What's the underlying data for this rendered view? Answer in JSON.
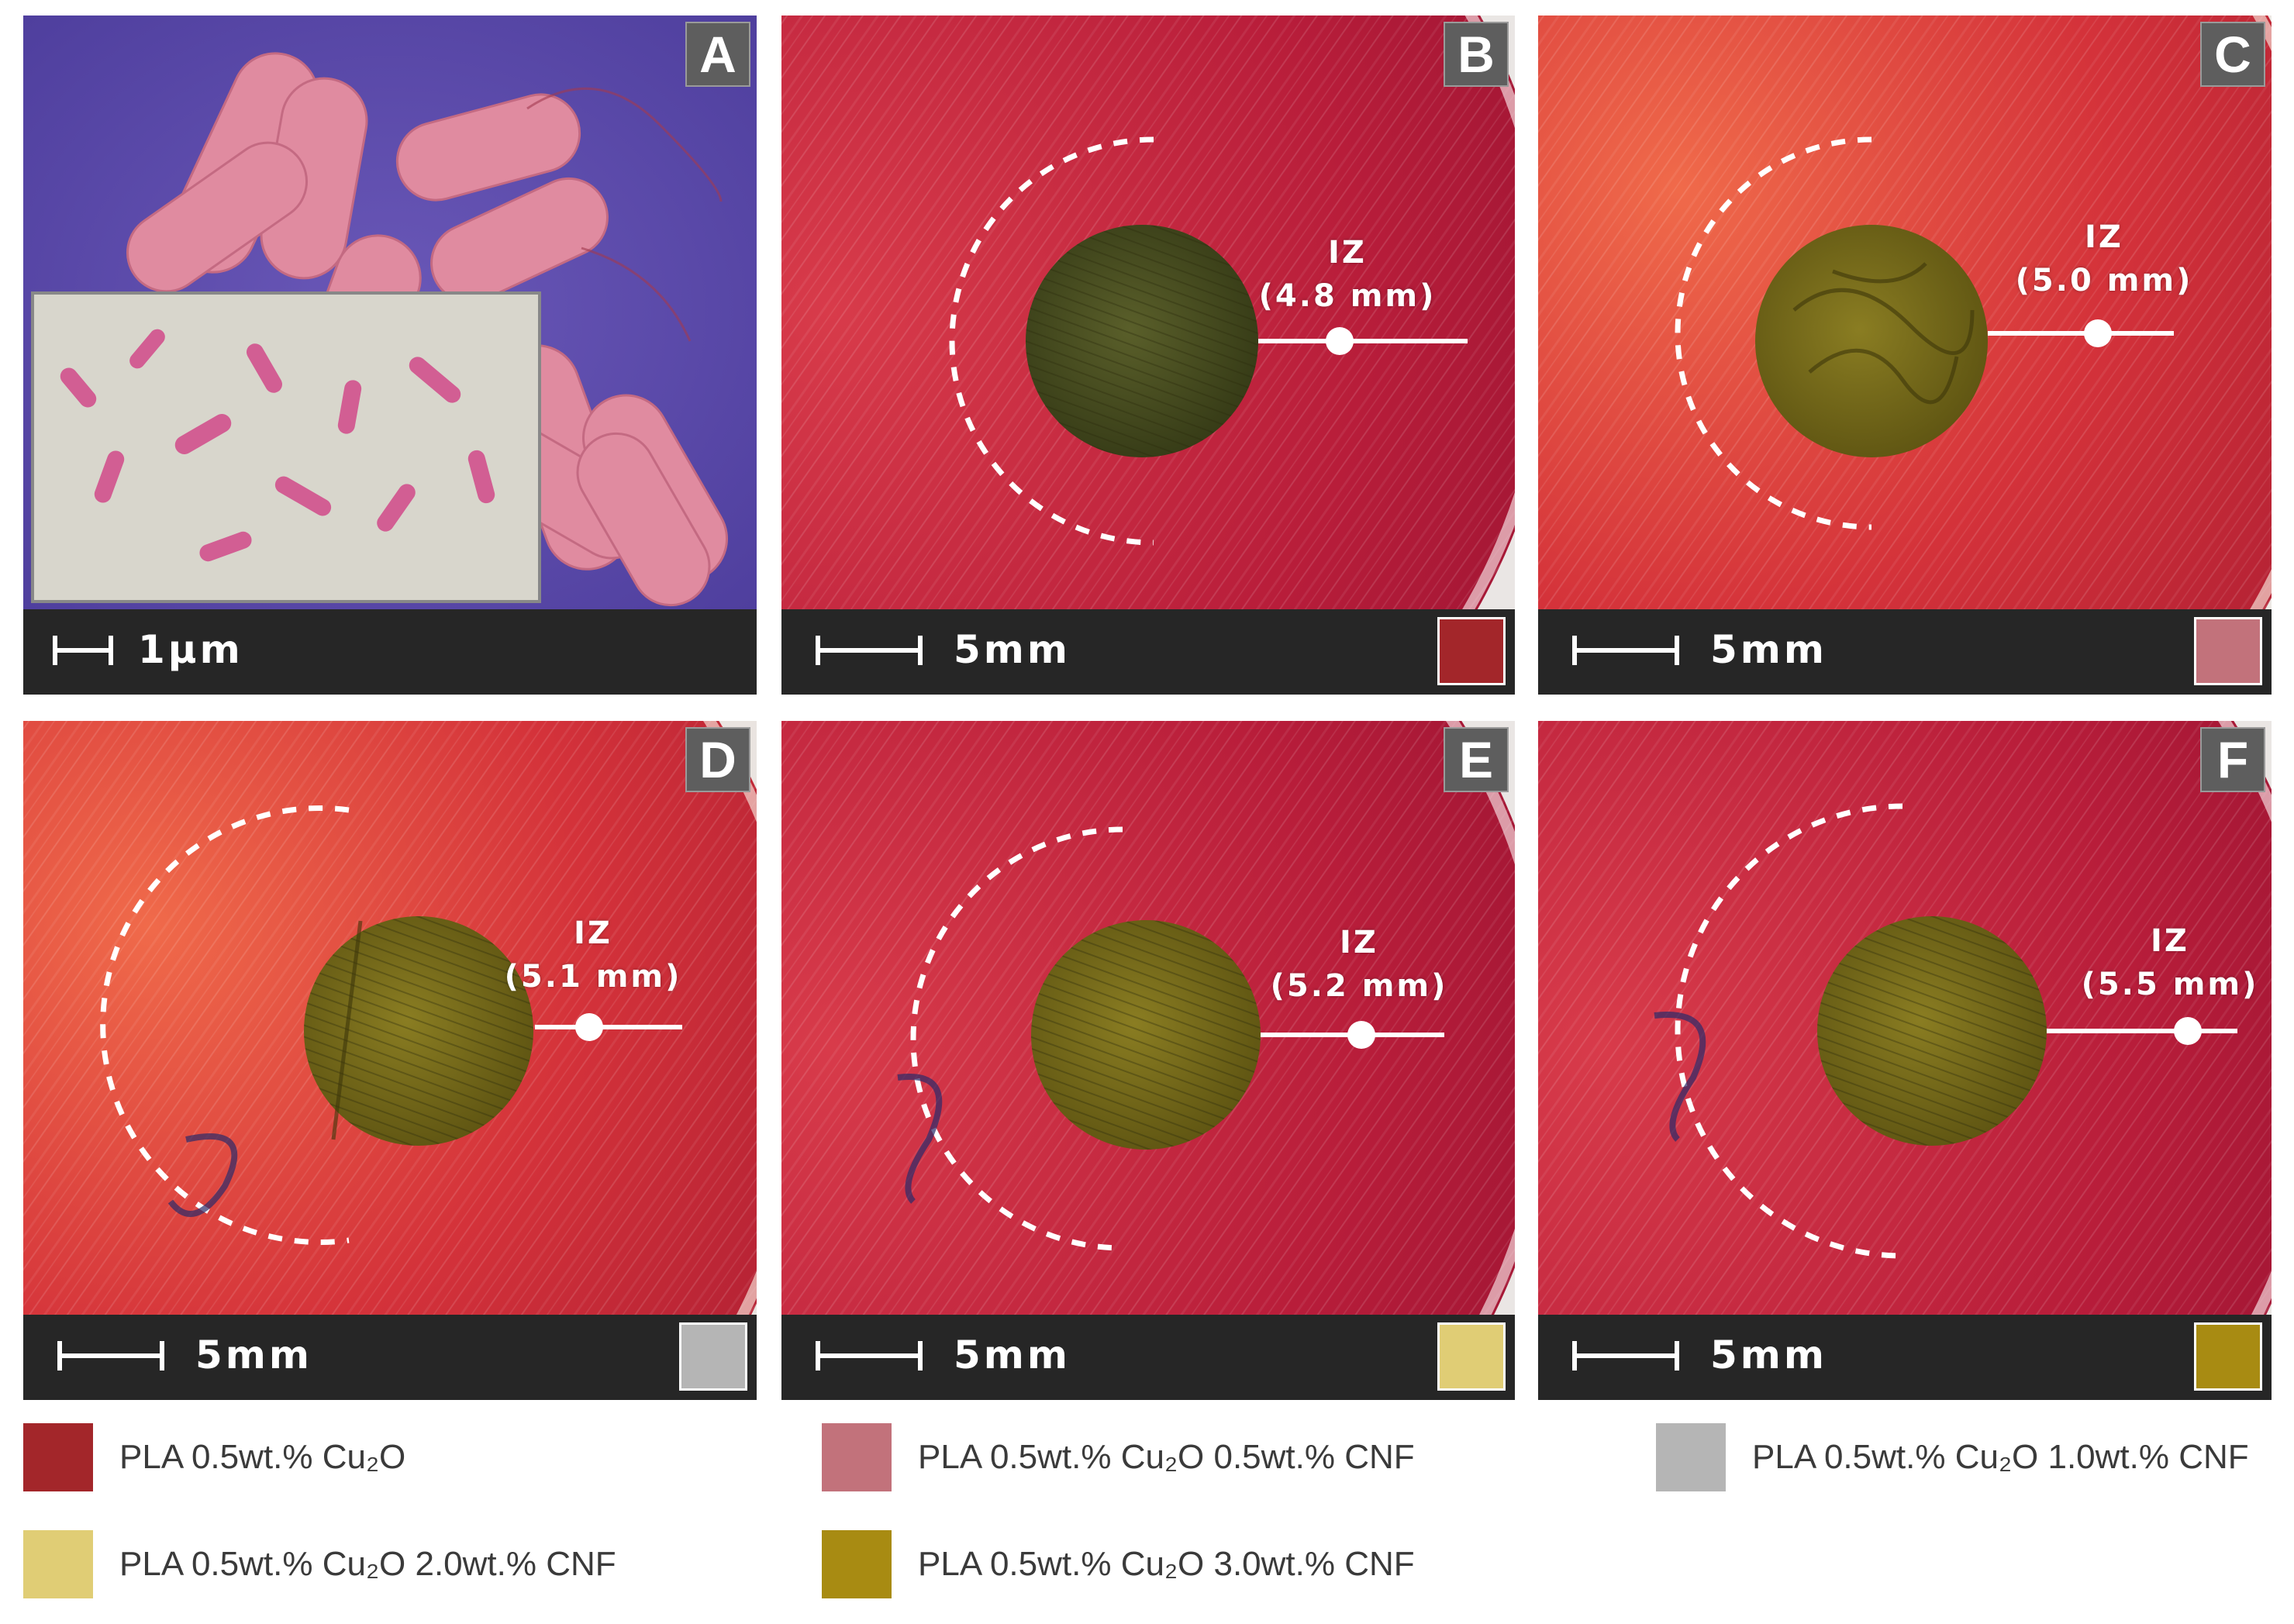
{
  "panels": [
    {
      "letter": "A",
      "scale": "1µm"
    },
    {
      "letter": "B",
      "scale": "5mm",
      "iz_label": "IZ",
      "iz_value": "(4.8 mm)",
      "swatch": "#a3262a"
    },
    {
      "letter": "C",
      "scale": "5mm",
      "iz_label": "IZ",
      "iz_value": "(5.0 mm)",
      "swatch": "#c2727b"
    },
    {
      "letter": "D",
      "scale": "5mm",
      "iz_label": "IZ",
      "iz_value": "(5.1 mm)",
      "swatch": "#b5b5b5"
    },
    {
      "letter": "E",
      "scale": "5mm",
      "iz_label": "IZ",
      "iz_value": "(5.2 mm)",
      "swatch": "#e0cd75"
    },
    {
      "letter": "F",
      "scale": "5mm",
      "iz_label": "IZ",
      "iz_value": "(5.5 mm)",
      "swatch": "#a88b12"
    }
  ],
  "legend": [
    {
      "label": "PLA 0.5wt.% Cu₂O",
      "color": "#a3262a"
    },
    {
      "label": "PLA 0.5wt.% Cu₂O 0.5wt.% CNF",
      "color": "#c2727b"
    },
    {
      "label": "PLA 0.5wt.% Cu₂O 1.0wt.% CNF",
      "color": "#b5b5b5"
    },
    {
      "label": "PLA 0.5wt.% Cu₂O 2.0wt.% CNF",
      "color": "#e0cd75"
    },
    {
      "label": "PLA 0.5wt.% Cu₂O 3.0wt.% CNF",
      "color": "#a88b12"
    }
  ]
}
